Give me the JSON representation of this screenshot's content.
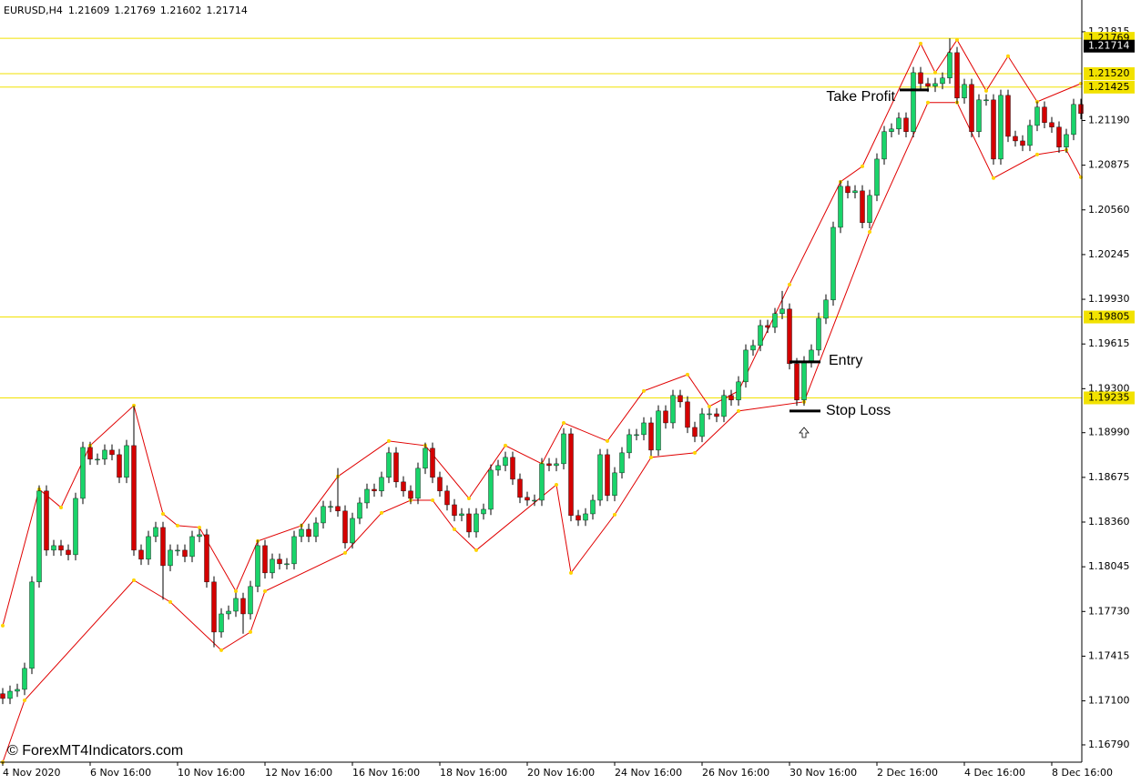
{
  "chart_data": {
    "type": "candlestick",
    "header": {
      "symbol": "EURUSD,H4",
      "ohlc": [
        1.21609,
        1.21769,
        1.21602,
        1.21714
      ]
    },
    "watermark": "© ForexMT4Indicators.com",
    "up_color": "#19d46a",
    "down_color": "#d40000",
    "wick_color": "#000000",
    "ylim": [
      1.16668,
      1.22039
    ],
    "yticks": [
      1.21815,
      {
        "value": 1.2119,
        "label": "1.21190"
      },
      1.20875,
      {
        "value": 1.2056,
        "label": "1.20560"
      },
      1.20245,
      {
        "value": 1.1993,
        "label": "1.19930"
      },
      1.19615,
      {
        "value": 1.193,
        "label": "1.19300"
      },
      {
        "value": 1.1899,
        "label": "1.18990"
      },
      1.18675,
      {
        "value": 1.1836,
        "label": "1.18360"
      },
      1.18045,
      {
        "value": 1.1773,
        "label": "1.17730"
      },
      1.17415,
      {
        "value": 1.171,
        "label": "1.17100"
      },
      {
        "value": 1.1679,
        "label": "1.16790"
      }
    ],
    "categories": [
      "4 Nov 2020",
      null,
      null,
      null,
      null,
      null,
      null,
      null,
      null,
      null,
      null,
      null,
      "6 Nov 16:00",
      null,
      null,
      null,
      null,
      null,
      null,
      null,
      null,
      null,
      null,
      null,
      "10 Nov 16:00",
      null,
      null,
      null,
      null,
      null,
      null,
      null,
      null,
      null,
      null,
      null,
      "12 Nov 16:00",
      null,
      null,
      null,
      null,
      null,
      null,
      null,
      null,
      null,
      null,
      null,
      "16 Nov 16:00",
      null,
      null,
      null,
      null,
      null,
      null,
      null,
      null,
      null,
      null,
      null,
      "18 Nov 16:00",
      null,
      null,
      null,
      null,
      null,
      null,
      null,
      null,
      null,
      null,
      null,
      "20 Nov 16:00",
      null,
      null,
      null,
      null,
      null,
      null,
      null,
      null,
      null,
      null,
      null,
      "24 Nov 16:00",
      null,
      null,
      null,
      null,
      null,
      null,
      null,
      null,
      null,
      null,
      null,
      "26 Nov 16:00",
      null,
      null,
      null,
      null,
      null,
      null,
      null,
      null,
      null,
      null,
      null,
      "30 Nov 16:00",
      null,
      null,
      null,
      null,
      null,
      null,
      null,
      null,
      null,
      null,
      null,
      "2 Dec 16:00",
      null,
      null,
      null,
      null,
      null,
      null,
      null,
      null,
      null,
      null,
      null,
      "4 Dec 16:00",
      null,
      null,
      null,
      null,
      null,
      null,
      null,
      null,
      null,
      null,
      null,
      "8 Dec 16:00",
      null,
      null,
      null,
      null
    ],
    "ohlc": [
      [
        1.1715,
        1.1719,
        1.17077,
        1.17117
      ],
      [
        1.17117,
        1.17208,
        1.17077,
        1.17168
      ],
      [
        1.17168,
        1.17221,
        1.17128,
        1.17181
      ],
      [
        1.17181,
        1.17369,
        1.17141,
        1.17329
      ],
      [
        1.17329,
        1.17978,
        1.17289,
        1.17938
      ],
      [
        1.17938,
        1.18619,
        1.17898,
        1.18579
      ],
      [
        1.18579,
        1.18619,
        1.18122,
        1.18162
      ],
      [
        1.18162,
        1.18234,
        1.18122,
        1.18194
      ],
      [
        1.18194,
        1.18234,
        1.18122,
        1.18162
      ],
      [
        1.18162,
        1.18202,
        1.1809,
        1.1813
      ],
      [
        1.1813,
        1.18567,
        1.1809,
        1.18527
      ],
      [
        1.18527,
        1.18926,
        1.18487,
        1.18886
      ],
      [
        1.18886,
        1.18926,
        1.18763,
        1.18803
      ],
      [
        1.18803,
        1.18843,
        1.18763,
        1.18803
      ],
      [
        1.18803,
        1.18907,
        1.18763,
        1.18867
      ],
      [
        1.18867,
        1.18907,
        1.18795,
        1.18835
      ],
      [
        1.18835,
        1.18875,
        1.18635,
        1.18675
      ],
      [
        1.18675,
        1.18939,
        1.18635,
        1.18899
      ],
      [
        1.18899,
        1.1918,
        1.18122,
        1.18162
      ],
      [
        1.18162,
        1.18202,
        1.18058,
        1.18098
      ],
      [
        1.18098,
        1.18298,
        1.18058,
        1.18258
      ],
      [
        1.18258,
        1.18362,
        1.18218,
        1.18322
      ],
      [
        1.18322,
        1.18362,
        1.17813,
        1.18053
      ],
      [
        1.18053,
        1.18202,
        1.18013,
        1.18162
      ],
      [
        1.18162,
        1.18202,
        1.18122,
        1.18162
      ],
      [
        1.18162,
        1.18202,
        1.18077,
        1.18117
      ],
      [
        1.18117,
        1.18298,
        1.18077,
        1.18258
      ],
      [
        1.18258,
        1.18311,
        1.18218,
        1.18271
      ],
      [
        1.18271,
        1.18311,
        1.17898,
        1.17938
      ],
      [
        1.17938,
        1.17978,
        1.17478,
        1.17585
      ],
      [
        1.17585,
        1.17753,
        1.17545,
        1.17713
      ],
      [
        1.17713,
        1.17772,
        1.17673,
        1.17732
      ],
      [
        1.17732,
        1.17862,
        1.17692,
        1.17822
      ],
      [
        1.17822,
        1.17862,
        1.17573,
        1.17713
      ],
      [
        1.17713,
        1.17946,
        1.17673,
        1.17906
      ],
      [
        1.17906,
        1.18234,
        1.17866,
        1.18194
      ],
      [
        1.18194,
        1.18234,
        1.17962,
        1.18002
      ],
      [
        1.18002,
        1.18138,
        1.17962,
        1.18098
      ],
      [
        1.18098,
        1.18138,
        1.18026,
        1.18066
      ],
      [
        1.18066,
        1.18106,
        1.18026,
        1.18066
      ],
      [
        1.18066,
        1.18298,
        1.18026,
        1.18258
      ],
      [
        1.18258,
        1.18349,
        1.18218,
        1.18309
      ],
      [
        1.18309,
        1.18349,
        1.18218,
        1.18258
      ],
      [
        1.18258,
        1.18394,
        1.18218,
        1.18354
      ],
      [
        1.18354,
        1.1851,
        1.18314,
        1.1847
      ],
      [
        1.1847,
        1.1851,
        1.1843,
        1.1847
      ],
      [
        1.1847,
        1.18741,
        1.18398,
        1.18438
      ],
      [
        1.18438,
        1.18478,
        1.18173,
        1.18213
      ],
      [
        1.18213,
        1.18426,
        1.18173,
        1.18386
      ],
      [
        1.18386,
        1.18535,
        1.18346,
        1.18495
      ],
      [
        1.18495,
        1.18631,
        1.18455,
        1.18591
      ],
      [
        1.18591,
        1.18631,
        1.18539,
        1.18579
      ],
      [
        1.18579,
        1.18715,
        1.18539,
        1.18675
      ],
      [
        1.18675,
        1.18888,
        1.18635,
        1.18848
      ],
      [
        1.18848,
        1.18888,
        1.18603,
        1.18643
      ],
      [
        1.18643,
        1.18683,
        1.18539,
        1.18579
      ],
      [
        1.18579,
        1.18619,
        1.18487,
        1.18527
      ],
      [
        1.18527,
        1.18779,
        1.18487,
        1.18739
      ],
      [
        1.18739,
        1.1892,
        1.18699,
        1.1888
      ],
      [
        1.1888,
        1.1892,
        1.18635,
        1.18675
      ],
      [
        1.18675,
        1.18715,
        1.18539,
        1.18579
      ],
      [
        1.18579,
        1.18619,
        1.18442,
        1.18482
      ],
      [
        1.18482,
        1.18522,
        1.18366,
        1.18406
      ],
      [
        1.18406,
        1.18458,
        1.18366,
        1.18418
      ],
      [
        1.18418,
        1.18458,
        1.1825,
        1.1829
      ],
      [
        1.1829,
        1.18458,
        1.1825,
        1.18418
      ],
      [
        1.18418,
        1.1849,
        1.18378,
        1.1845
      ],
      [
        1.1845,
        1.18766,
        1.1841,
        1.18726
      ],
      [
        1.18726,
        1.18798,
        1.18686,
        1.18758
      ],
      [
        1.18758,
        1.18856,
        1.18718,
        1.18816
      ],
      [
        1.18816,
        1.18856,
        1.18622,
        1.18662
      ],
      [
        1.18662,
        1.18702,
        1.18494,
        1.18534
      ],
      [
        1.18534,
        1.18574,
        1.18474,
        1.18514
      ],
      [
        1.18514,
        1.18554,
        1.18474,
        1.18514
      ],
      [
        1.18514,
        1.18811,
        1.18474,
        1.18771
      ],
      [
        1.18771,
        1.18811,
        1.18718,
        1.18758
      ],
      [
        1.18758,
        1.18811,
        1.18718,
        1.18771
      ],
      [
        1.18771,
        1.19022,
        1.18731,
        1.18982
      ],
      [
        1.18982,
        1.19022,
        1.18366,
        1.18406
      ],
      [
        1.18406,
        1.18446,
        1.18333,
        1.18373
      ],
      [
        1.18373,
        1.18458,
        1.18333,
        1.18418
      ],
      [
        1.18418,
        1.18554,
        1.18378,
        1.18514
      ],
      [
        1.18514,
        1.18875,
        1.18474,
        1.18835
      ],
      [
        1.18835,
        1.18875,
        1.18507,
        1.18547
      ],
      [
        1.18547,
        1.18747,
        1.18507,
        1.18707
      ],
      [
        1.18707,
        1.18888,
        1.18667,
        1.18848
      ],
      [
        1.18848,
        1.19016,
        1.18808,
        1.18976
      ],
      [
        1.18976,
        1.19016,
        1.18936,
        1.18976
      ],
      [
        1.18976,
        1.19099,
        1.18936,
        1.19059
      ],
      [
        1.19059,
        1.19099,
        1.18827,
        1.18867
      ],
      [
        1.18867,
        1.19183,
        1.18827,
        1.19143
      ],
      [
        1.19143,
        1.19183,
        1.19019,
        1.19059
      ],
      [
        1.19059,
        1.19292,
        1.19019,
        1.19252
      ],
      [
        1.19252,
        1.19292,
        1.19167,
        1.19207
      ],
      [
        1.19207,
        1.19247,
        1.18987,
        1.19027
      ],
      [
        1.19027,
        1.19067,
        1.18923,
        1.18963
      ],
      [
        1.18963,
        1.19163,
        1.18923,
        1.19123
      ],
      [
        1.19123,
        1.19163,
        1.19083,
        1.19123
      ],
      [
        1.19123,
        1.19163,
        1.19064,
        1.19104
      ],
      [
        1.19104,
        1.19292,
        1.19064,
        1.19252
      ],
      [
        1.19252,
        1.19292,
        1.1918,
        1.1922
      ],
      [
        1.1922,
        1.19388,
        1.1918,
        1.19348
      ],
      [
        1.19348,
        1.19612,
        1.19308,
        1.19572
      ],
      [
        1.19572,
        1.19644,
        1.19532,
        1.19604
      ],
      [
        1.19604,
        1.19785,
        1.19564,
        1.19745
      ],
      [
        1.19745,
        1.19785,
        1.19692,
        1.19732
      ],
      [
        1.19732,
        1.19869,
        1.19692,
        1.19829
      ],
      [
        1.19829,
        1.19989,
        1.19789,
        1.19861
      ],
      [
        1.19861,
        1.19901,
        1.19436,
        1.19476
      ],
      [
        1.19476,
        1.19516,
        1.1918,
        1.1922
      ],
      [
        1.1922,
        1.19529,
        1.1918,
        1.19489
      ],
      [
        1.19489,
        1.19612,
        1.19449,
        1.19572
      ],
      [
        1.19572,
        1.19836,
        1.19532,
        1.19796
      ],
      [
        1.19796,
        1.19965,
        1.19756,
        1.19925
      ],
      [
        1.19925,
        1.20477,
        1.19885,
        1.20437
      ],
      [
        1.20437,
        1.20766,
        1.20397,
        1.20726
      ],
      [
        1.20726,
        1.20766,
        1.20641,
        1.20681
      ],
      [
        1.20681,
        1.20734,
        1.20641,
        1.20694
      ],
      [
        1.20694,
        1.20734,
        1.2043,
        1.2047
      ],
      [
        1.2047,
        1.20702,
        1.2043,
        1.20662
      ],
      [
        1.20662,
        1.20958,
        1.20622,
        1.20918
      ],
      [
        1.20918,
        1.21151,
        1.20878,
        1.21111
      ],
      [
        1.21111,
        1.2117,
        1.21071,
        1.2113
      ],
      [
        1.2113,
        1.21247,
        1.2109,
        1.21207
      ],
      [
        1.21207,
        1.21247,
        1.21071,
        1.21111
      ],
      [
        1.21111,
        1.21567,
        1.21071,
        1.21527
      ],
      [
        1.21527,
        1.21567,
        1.2141,
        1.2145
      ],
      [
        1.2145,
        1.2149,
        1.21391,
        1.21431
      ],
      [
        1.21431,
        1.2149,
        1.21391,
        1.2145
      ],
      [
        1.2145,
        1.21529,
        1.2141,
        1.21489
      ],
      [
        1.21489,
        1.21769,
        1.21449,
        1.21668
      ],
      [
        1.21668,
        1.21708,
        1.21308,
        1.21348
      ],
      [
        1.21348,
        1.21484,
        1.21308,
        1.21444
      ],
      [
        1.21444,
        1.21484,
        1.21071,
        1.21111
      ],
      [
        1.21111,
        1.21375,
        1.21071,
        1.21335
      ],
      [
        1.21335,
        1.21375,
        1.21295,
        1.21335
      ],
      [
        1.21335,
        1.21375,
        1.20878,
        1.20918
      ],
      [
        1.20918,
        1.21407,
        1.20878,
        1.21367
      ],
      [
        1.21367,
        1.21407,
        1.21038,
        1.21078
      ],
      [
        1.21078,
        1.21118,
        1.21006,
        1.21046
      ],
      [
        1.21046,
        1.21086,
        1.20974,
        1.21014
      ],
      [
        1.21014,
        1.21195,
        1.20974,
        1.21155
      ],
      [
        1.21155,
        1.21324,
        1.21115,
        1.21284
      ],
      [
        1.21284,
        1.21324,
        1.21135,
        1.21175
      ],
      [
        1.21175,
        1.21215,
        1.21103,
        1.21143
      ],
      [
        1.21143,
        1.21183,
        1.20962,
        1.21002
      ],
      [
        1.21002,
        1.21131,
        1.20962,
        1.21091
      ],
      [
        1.21091,
        1.21343,
        1.21051,
        1.21303
      ],
      [
        1.21303,
        1.21343,
        1.21199,
        1.21239
      ]
    ],
    "envelope": [
      {
        "color": "#e00000",
        "x": [
          0,
          5,
          8,
          12,
          18,
          22,
          24,
          27,
          32,
          35,
          41,
          46,
          53,
          58,
          64,
          69,
          74,
          77,
          83,
          88,
          94,
          97,
          101,
          108,
          115,
          118,
          126,
          128,
          131,
          135,
          138,
          142,
          148
        ],
        "values": [
          1.1763,
          1.18591,
          1.18463,
          1.18899,
          1.19181,
          1.18418,
          1.18335,
          1.18322,
          1.17873,
          1.18226,
          1.18335,
          1.18681,
          1.18931,
          1.18899,
          1.18527,
          1.18899,
          1.18771,
          1.19059,
          1.18931,
          1.19284,
          1.19399,
          1.19175,
          1.19284,
          1.20034,
          1.20758,
          1.20867,
          1.21732,
          1.21527,
          1.21758,
          1.21399,
          1.21643,
          1.21322,
          1.2145
        ]
      },
      {
        "color": "#e00000",
        "x": [
          0,
          3,
          18,
          23,
          30,
          34,
          36,
          47,
          52,
          56,
          59,
          62,
          65,
          76,
          78,
          84,
          89,
          95,
          101,
          110,
          119,
          127,
          131,
          136,
          142,
          146,
          148
        ],
        "values": [
          1.16668,
          1.17104,
          1.1795,
          1.17797,
          1.17457,
          1.17585,
          1.17873,
          1.18143,
          1.18425,
          1.18514,
          1.18514,
          1.18309,
          1.18162,
          1.18623,
          1.18002,
          1.18412,
          1.18816,
          1.18848,
          1.19143,
          1.19207,
          1.20405,
          1.21316,
          1.21316,
          1.20784,
          1.2095,
          1.20982,
          1.2079
        ]
      }
    ],
    "vertex_color": "#ffd400",
    "level_color": "#f2e200",
    "levels": [
      1.21769,
      {
        "value": 1.2152,
        "label": "1.21520"
      },
      1.21425,
      1.19805,
      1.19235
    ],
    "annotations": [
      {
        "text": "Take Profit",
        "value": 1.21405
      },
      {
        "text": "Entry",
        "value": 1.19489
      },
      {
        "text": "Stop Loss",
        "value": 1.19143
      }
    ]
  }
}
